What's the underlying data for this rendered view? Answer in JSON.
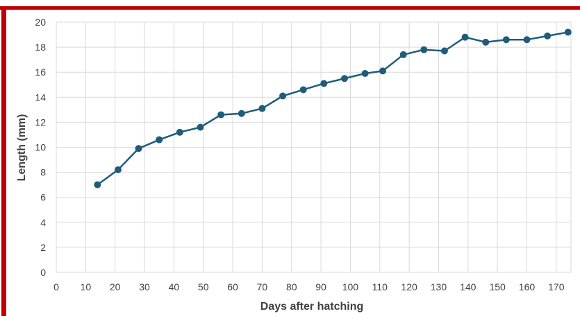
{
  "colors": {
    "border": "#c00000",
    "series": "#1f5c7a",
    "grid": "#d9d9d9",
    "text": "#404040"
  },
  "chart_data": {
    "type": "line",
    "xlabel": "Days after hatching",
    "ylabel": "Length (mm)",
    "xlim": [
      0,
      175
    ],
    "ylim": [
      0,
      20
    ],
    "x_ticks": [
      0,
      10,
      20,
      30,
      40,
      50,
      60,
      70,
      80,
      90,
      100,
      110,
      120,
      130,
      140,
      150,
      160,
      170
    ],
    "y_ticks": [
      0,
      2,
      4,
      6,
      8,
      10,
      12,
      14,
      16,
      18,
      20
    ],
    "grid": true,
    "markers": true,
    "series": [
      {
        "x": [
          14,
          21,
          28,
          35,
          42,
          49,
          56,
          63,
          70,
          77,
          84,
          91,
          98,
          105,
          111,
          118,
          125,
          132,
          139,
          146,
          153,
          160,
          167,
          174
        ],
        "y": [
          7.0,
          8.2,
          9.9,
          10.6,
          11.2,
          11.6,
          12.6,
          12.7,
          13.1,
          14.1,
          14.6,
          15.1,
          15.5,
          15.9,
          16.1,
          17.4,
          17.8,
          17.7,
          18.8,
          18.4,
          18.6,
          18.6,
          18.9,
          19.2
        ]
      }
    ]
  }
}
